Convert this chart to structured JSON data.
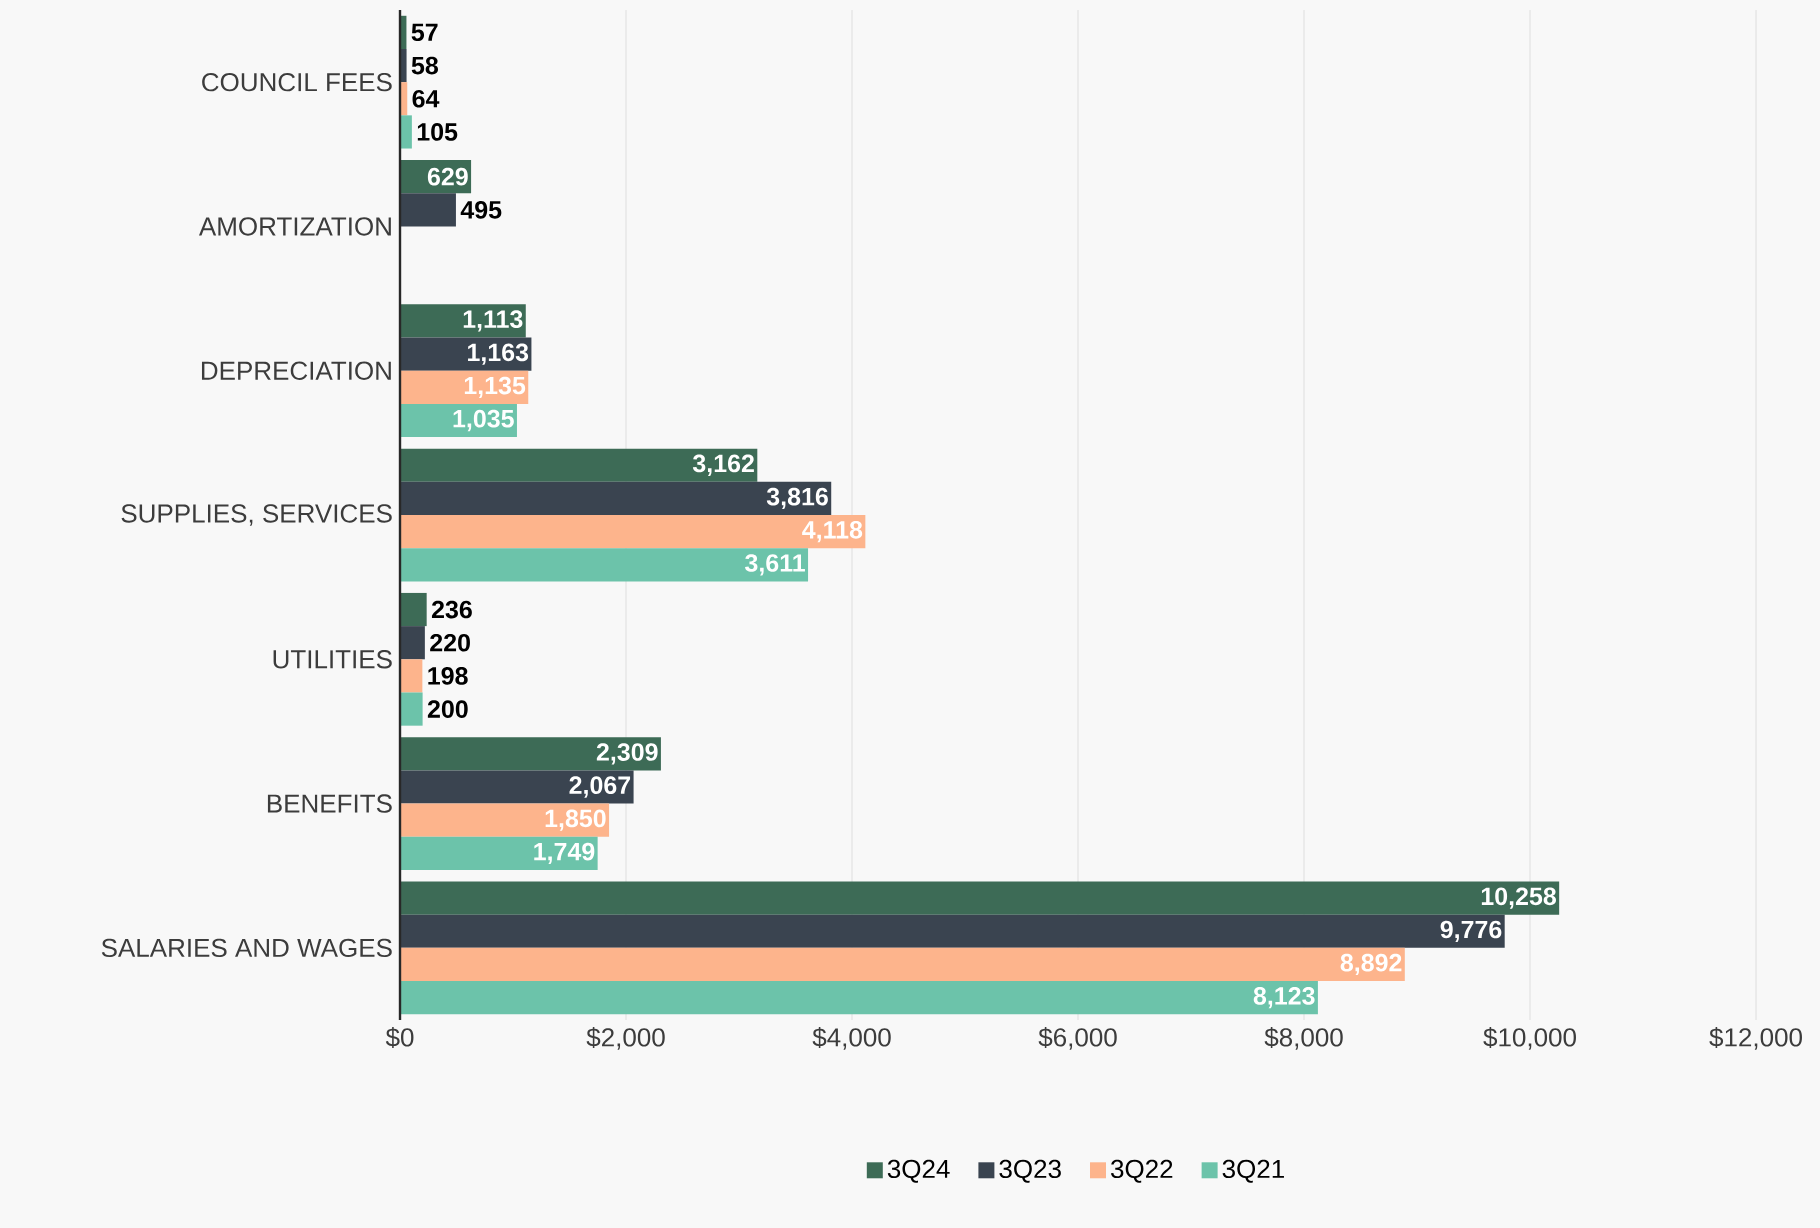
{
  "chart_data": {
    "type": "bar",
    "orientation": "horizontal",
    "categories": [
      "COUNCIL FEES",
      "AMORTIZATION",
      "DEPRECIATION",
      "SUPPLIES, SERVICES",
      "UTILITIES",
      "BENEFITS",
      "SALARIES AND WAGES"
    ],
    "series": [
      {
        "name": "3Q24",
        "color": "#3d6b56",
        "values": [
          57,
          629,
          1113,
          3162,
          236,
          2309,
          10258
        ],
        "value_labels": [
          "57",
          "629",
          "1,113",
          "3,162",
          "236",
          "2,309",
          "10,258"
        ]
      },
      {
        "name": "3Q23",
        "color": "#3a4450",
        "values": [
          58,
          495,
          1163,
          3816,
          220,
          2067,
          9776
        ],
        "value_labels": [
          "58",
          "495",
          "1,163",
          "3,816",
          "220",
          "2,067",
          "9,776"
        ]
      },
      {
        "name": "3Q22",
        "color": "#fdb48c",
        "values": [
          64,
          null,
          1135,
          4118,
          198,
          1850,
          8892
        ],
        "value_labels": [
          "64",
          null,
          "1,135",
          "4,118",
          "198",
          "1,850",
          "8,892"
        ]
      },
      {
        "name": "3Q21",
        "color": "#6cc3aa",
        "values": [
          105,
          null,
          1035,
          3611,
          200,
          1749,
          8123
        ],
        "value_labels": [
          "105",
          null,
          "1,035",
          "3,611",
          "200",
          "1,749",
          "8,123"
        ]
      }
    ],
    "xlim": [
      0,
      12000
    ],
    "xticks": [
      {
        "value": 0,
        "label": "$0"
      },
      {
        "value": 2000,
        "label": "$2,000"
      },
      {
        "value": 4000,
        "label": "$4,000"
      },
      {
        "value": 6000,
        "label": "$6,000"
      },
      {
        "value": 8000,
        "label": "$8,000"
      },
      {
        "value": 10000,
        "label": "$10,000"
      },
      {
        "value": 12000,
        "label": "$12,000"
      }
    ],
    "grid": "x",
    "legend": "bottom"
  }
}
